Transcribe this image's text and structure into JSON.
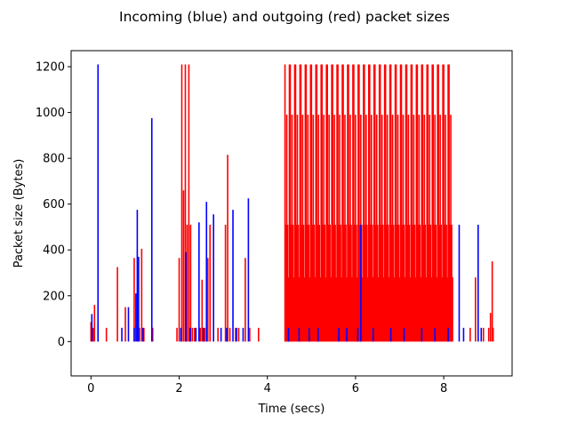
{
  "chart_data": {
    "type": "bar",
    "title": "Incoming (blue) and outgoing (red) packet sizes",
    "xlabel": "Time (secs)",
    "ylabel": "Packet size (Bytes)",
    "xlim": [
      -0.45,
      9.55
    ],
    "ylim": [
      -150,
      1270
    ],
    "xticks": [
      0,
      2,
      4,
      6,
      8
    ],
    "yticks": [
      0,
      200,
      400,
      600,
      800,
      1000,
      1200
    ],
    "grid": false,
    "legend": "none",
    "series": [
      {
        "color": "#0000ff",
        "points": [
          [
            0.02,
            120
          ],
          [
            0.16,
            1210
          ],
          [
            0.16,
            80
          ],
          [
            0.7,
            60
          ],
          [
            0.85,
            150
          ],
          [
            0.98,
            60
          ],
          [
            1.02,
            210
          ],
          [
            1.05,
            575
          ],
          [
            1.08,
            370
          ],
          [
            1.18,
            60
          ],
          [
            1.38,
            975
          ],
          [
            2.04,
            60
          ],
          [
            2.15,
            390
          ],
          [
            2.25,
            60
          ],
          [
            2.38,
            60
          ],
          [
            2.45,
            520
          ],
          [
            2.55,
            60
          ],
          [
            2.62,
            610
          ],
          [
            2.78,
            555
          ],
          [
            2.95,
            60
          ],
          [
            3.08,
            60
          ],
          [
            3.22,
            575
          ],
          [
            3.3,
            60
          ],
          [
            3.45,
            60
          ],
          [
            3.57,
            625
          ],
          [
            4.48,
            60
          ],
          [
            4.72,
            60
          ],
          [
            4.95,
            60
          ],
          [
            5.15,
            60
          ],
          [
            5.62,
            60
          ],
          [
            5.8,
            60
          ],
          [
            6.05,
            60
          ],
          [
            6.12,
            510
          ],
          [
            6.4,
            60
          ],
          [
            6.8,
            60
          ],
          [
            7.1,
            60
          ],
          [
            7.5,
            60
          ],
          [
            7.8,
            60
          ],
          [
            8.1,
            60
          ],
          [
            8.35,
            510
          ],
          [
            8.45,
            60
          ],
          [
            8.78,
            510
          ],
          [
            8.85,
            60
          ]
        ]
      },
      {
        "color": "#ff0000",
        "points": [
          [
            0.0,
            85
          ],
          [
            0.05,
            60
          ],
          [
            0.08,
            160
          ],
          [
            0.35,
            60
          ],
          [
            0.6,
            325
          ],
          [
            0.78,
            150
          ],
          [
            0.98,
            365
          ],
          [
            1.1,
            60
          ],
          [
            1.15,
            405
          ],
          [
            1.2,
            60
          ],
          [
            1.4,
            60
          ],
          [
            1.95,
            60
          ],
          [
            2.0,
            365
          ],
          [
            2.06,
            1210
          ],
          [
            2.1,
            660
          ],
          [
            2.14,
            1210
          ],
          [
            2.18,
            510
          ],
          [
            2.22,
            1210
          ],
          [
            2.26,
            510
          ],
          [
            2.3,
            60
          ],
          [
            2.35,
            60
          ],
          [
            2.48,
            60
          ],
          [
            2.52,
            270
          ],
          [
            2.58,
            60
          ],
          [
            2.65,
            365
          ],
          [
            2.7,
            510
          ],
          [
            2.88,
            60
          ],
          [
            3.05,
            510
          ],
          [
            3.1,
            815
          ],
          [
            3.15,
            60
          ],
          [
            3.28,
            60
          ],
          [
            3.35,
            60
          ],
          [
            3.5,
            365
          ],
          [
            3.6,
            60
          ],
          [
            3.8,
            60
          ]
        ],
        "fill_band": {
          "x_start": 4.4,
          "x_end": 8.2,
          "step": 0.02,
          "extra": [
            [
              8.6,
              60
            ],
            [
              8.72,
              280
            ],
            [
              8.9,
              60
            ],
            [
              9.02,
              60
            ],
            [
              9.06,
              125
            ],
            [
              9.1,
              350
            ],
            [
              9.12,
              60
            ]
          ]
        }
      }
    ]
  }
}
